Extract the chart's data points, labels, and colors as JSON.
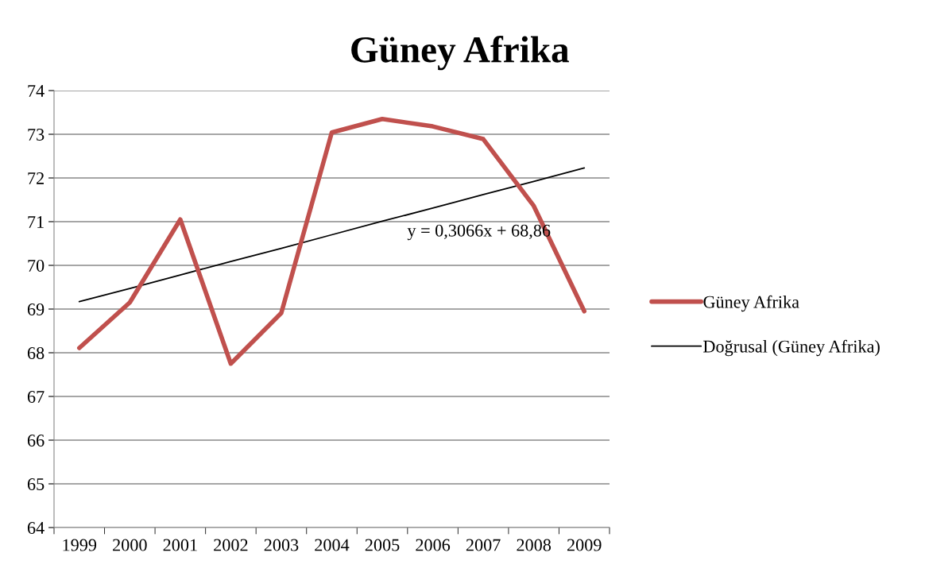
{
  "chart_data": {
    "type": "line",
    "title": "Güney Afrika",
    "categories": [
      "1999",
      "2000",
      "2001",
      "2002",
      "2003",
      "2004",
      "2005",
      "2006",
      "2007",
      "2008",
      "2009"
    ],
    "series": [
      {
        "name": "Güney Afrika",
        "color": "#c0504d",
        "values": [
          68.11,
          69.15,
          71.05,
          67.75,
          68.91,
          73.04,
          73.35,
          73.18,
          72.89,
          71.36,
          68.95
        ]
      },
      {
        "name": "Doğrusal (Güney Afrika)",
        "color": "#000000",
        "values": [
          69.17,
          69.47,
          69.78,
          70.09,
          70.39,
          70.7,
          71.01,
          71.31,
          71.62,
          71.92,
          72.23
        ]
      }
    ],
    "annotations": [
      "y = 0,3066x + 68,86"
    ],
    "ylim": [
      64,
      74
    ],
    "yticks": [
      64,
      65,
      66,
      67,
      68,
      69,
      70,
      71,
      72,
      73,
      74
    ],
    "grid": "y",
    "legend": "right",
    "marker": "none",
    "line_style": "solid"
  }
}
